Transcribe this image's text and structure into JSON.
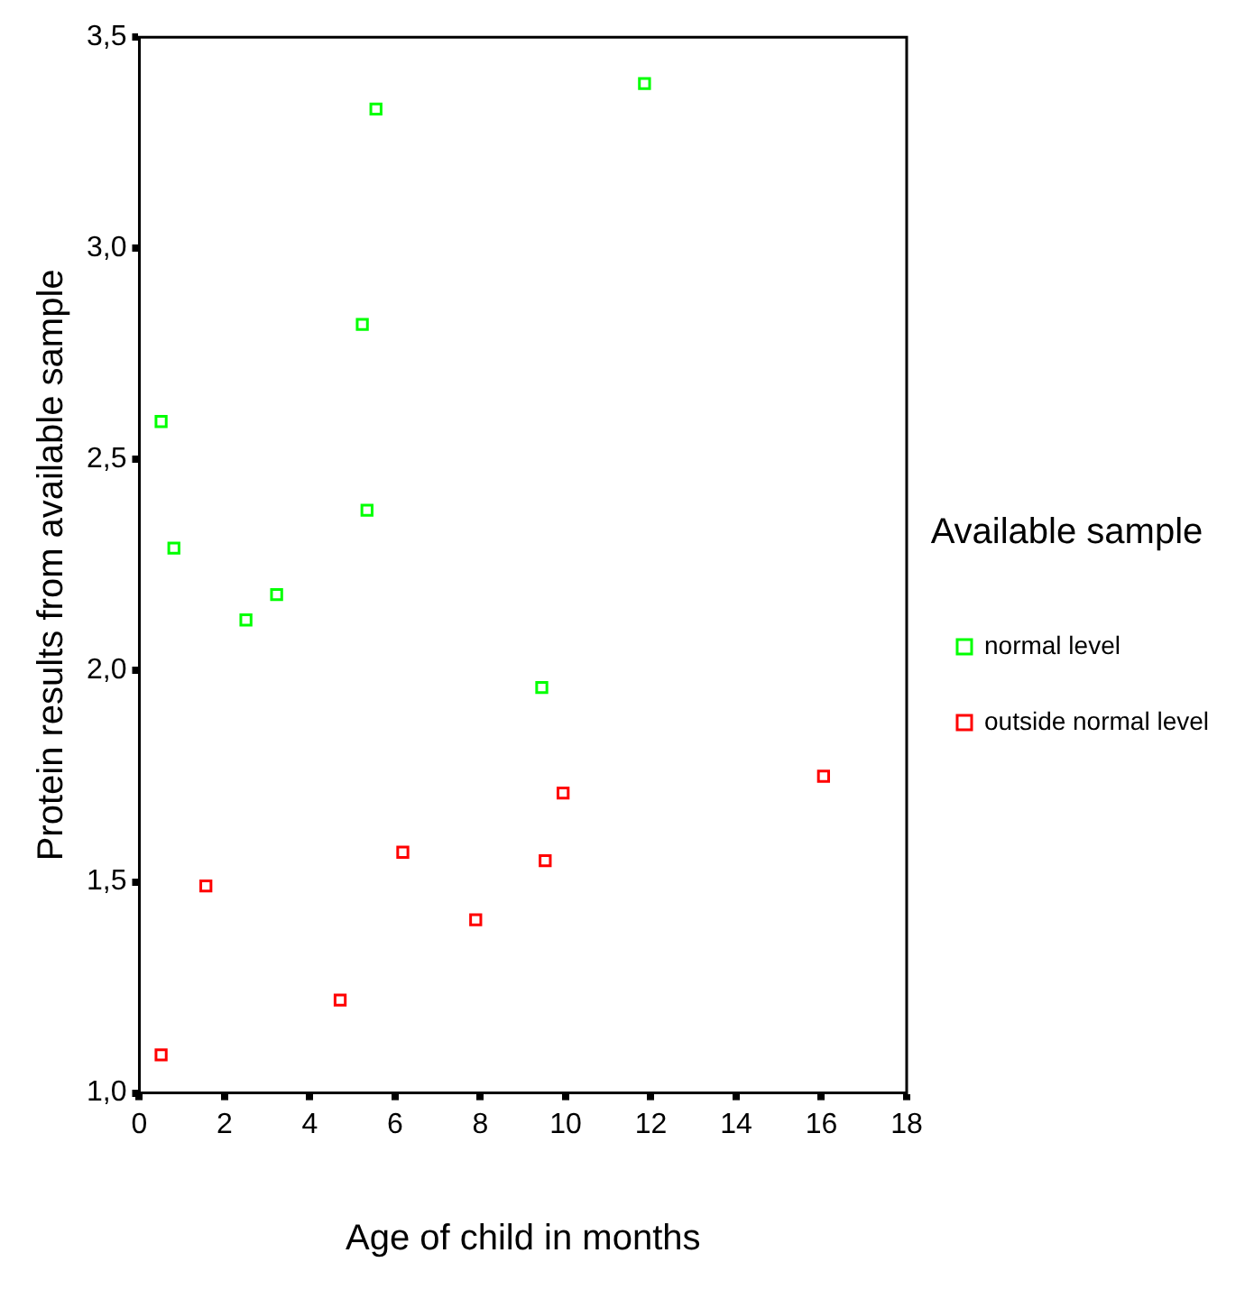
{
  "chart_data": {
    "type": "scatter",
    "xlabel": "Age of child in months",
    "ylabel": "Protein results from available sample",
    "legend_title": "Available sample",
    "legend": "right",
    "marker": "square",
    "grid": false,
    "xlim": [
      0,
      18
    ],
    "xticks": [
      0,
      2,
      4,
      6,
      8,
      10,
      12,
      14,
      16,
      18
    ],
    "ylim": [
      1,
      3.5
    ],
    "yticks": [
      {
        "value": 1,
        "label": "1,0"
      },
      {
        "value": 1.5,
        "label": "1,5"
      },
      {
        "value": 2,
        "label": "2,0"
      },
      {
        "value": 2.5,
        "label": "2,5"
      },
      {
        "value": 3,
        "label": "3,0"
      },
      {
        "value": 3.5,
        "label": "3,5"
      }
    ],
    "series": [
      {
        "name": "normal level",
        "color": "#00ff00",
        "x": [
          5.55,
          11.85,
          5.23,
          0.51,
          5.34,
          0.81,
          3.22,
          2.5,
          9.44
        ],
        "values": [
          3.33,
          3.39,
          2.82,
          2.59,
          2.38,
          2.29,
          2.18,
          2.12,
          1.96
        ]
      },
      {
        "name": "outside normal level",
        "color": "#ff0000",
        "x": [
          0.51,
          1.56,
          4.71,
          6.18,
          7.89,
          9.52,
          9.94,
          16.05
        ],
        "values": [
          1.09,
          1.49,
          1.22,
          1.57,
          1.41,
          1.55,
          1.71,
          1.75
        ]
      }
    ]
  }
}
